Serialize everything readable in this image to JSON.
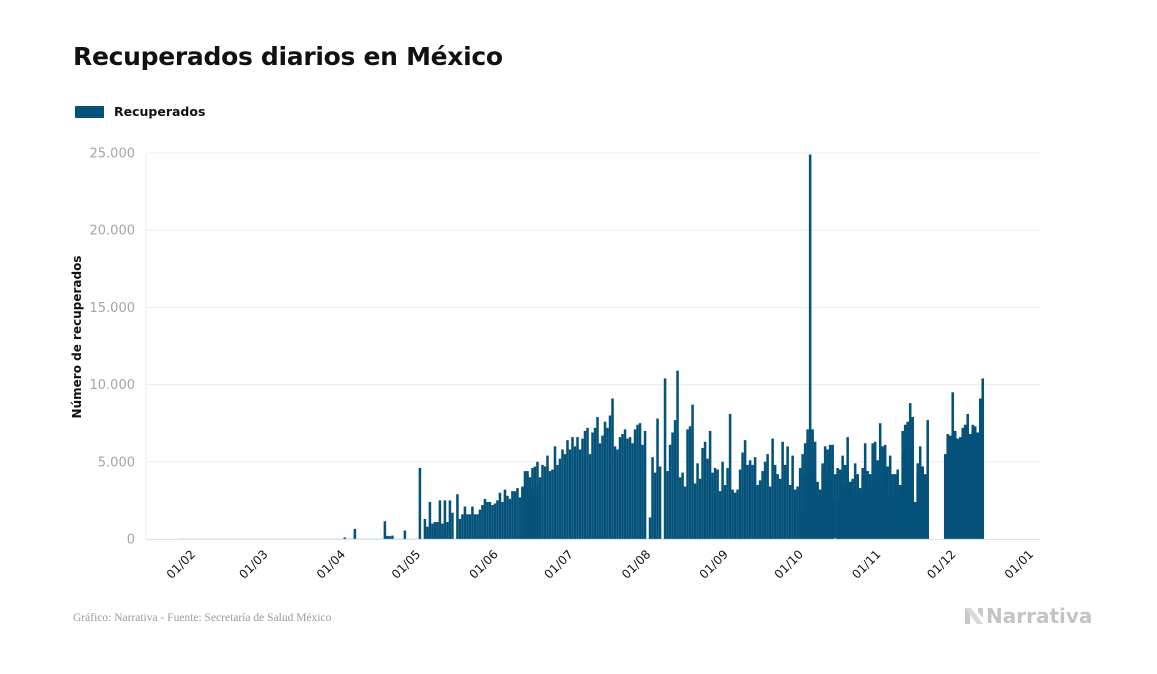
{
  "header": {
    "title": "Recuperados diarios en México"
  },
  "legend": {
    "items": [
      {
        "label": "Recuperados",
        "color": "#04527a"
      }
    ]
  },
  "footer": {
    "source": "Gráfico: Narrativa - Fuente: Secretaría de Salud México",
    "brand": "Narrativa",
    "brand_icon": "narrativa-logo-icon"
  },
  "chart_data": {
    "type": "bar",
    "title": "Recuperados diarios en México",
    "xlabel": "",
    "ylabel": "Número de recuperados",
    "ylim": [
      0,
      25000
    ],
    "yticks": [
      0,
      5000,
      10000,
      15000,
      20000,
      25000
    ],
    "ytick_labels": [
      "0",
      "5.000",
      "10.000",
      "15.000",
      "20.000",
      "25.000"
    ],
    "xlim": [
      "2020-01-10",
      "2020-12-31"
    ],
    "xticks": [
      "2020-02-01",
      "2020-03-01",
      "2020-04-01",
      "2020-05-01",
      "2020-06-01",
      "2020-07-01",
      "2020-08-01",
      "2020-09-01",
      "2020-10-01",
      "2020-11-01",
      "2020-12-01",
      "2021-01-01"
    ],
    "xtick_labels": [
      "01/02",
      "01/03",
      "01/04",
      "01/05",
      "01/06",
      "01/07",
      "01/08",
      "01/09",
      "01/10",
      "01/11",
      "01/12",
      "01/01"
    ],
    "grid": true,
    "legend_position": "top-left",
    "color": "#04527a",
    "series": [
      {
        "name": "Recuperados",
        "segments": [
          {
            "start": "2020-01-25",
            "values": [
              10,
              10,
              10,
              10,
              10,
              10,
              10,
              10,
              10,
              10,
              10,
              10,
              10,
              10,
              10,
              10,
              10,
              10,
              10,
              10,
              10,
              10,
              10,
              10,
              10,
              10,
              10,
              10,
              10,
              10,
              10,
              10,
              10,
              10,
              10,
              10,
              10,
              10,
              10,
              10,
              10,
              10,
              10,
              10,
              10,
              10,
              10,
              10,
              10,
              10,
              10,
              10,
              10,
              10,
              10,
              10,
              10,
              10,
              10,
              10,
              10,
              10,
              10,
              10,
              10,
              10
            ]
          },
          {
            "start": "2020-03-31",
            "values": [
              100,
              0,
              0,
              0,
              650,
              0,
              0,
              0,
              0,
              0,
              0,
              0,
              0,
              0,
              0,
              0,
              1150,
              200,
              180,
              220,
              0,
              0,
              0,
              0,
              550,
              0,
              0,
              0,
              0,
              0
            ]
          },
          {
            "start": "2020-04-30",
            "values": [
              4600,
              0,
              1300,
              800,
              2400,
              1000,
              1100,
              1100,
              2500,
              1000,
              2500,
              1100,
              2500,
              1700,
              0,
              2900,
              1300,
              1600,
              2100,
              1600,
              1600,
              2100,
              1600,
              1600,
              1900,
              2200,
              2600,
              2400,
              2400,
              2200,
              2300,
              2500,
              3000,
              2400,
              3200,
              2800,
              2600,
              3100,
              3100,
              3300,
              2700,
              3400,
              3400,
              4200,
              3300,
              3400,
              3000,
              3500
            ]
          },
          {
            "start": "2020-06-10",
            "values": [
              3300,
              4400,
              4400,
              4000,
              4600,
              4700,
              5000,
              4000,
              4800,
              4700,
              5400,
              4400,
              4500,
              6000,
              4800,
              5200,
              5800,
              5500,
              6400,
              5800,
              6600,
              6000,
              6600,
              5800,
              6500,
              7000,
              7200,
              5500,
              6900,
              7200
            ]
          },
          {
            "start": "2020-07-10",
            "values": [
              7900,
              6200,
              6700,
              7600,
              7200,
              8000,
              9100,
              6000,
              5800,
              6600,
              6800,
              7100,
              6500,
              6600,
              6200,
              7100,
              7400,
              7500,
              6100,
              7000
            ]
          },
          {
            "start": "2020-07-30",
            "values": [
              0,
              1400,
              5300,
              4300,
              7800,
              4700,
              0,
              10400,
              4400,
              6100,
              6900,
              7700,
              10900,
              4000,
              4300,
              3400,
              7100,
              7300,
              8700,
              3600,
              4900,
              3900,
              5900,
              6300,
              5200,
              7000,
              4300,
              4600,
              4500,
              3100,
              5000,
              3500,
              4600,
              8100,
              3200,
              3000,
              3200,
              4500,
              5600,
              6400,
              4800,
              5100,
              4800,
              5300,
              3500,
              3800,
              4400,
              5000,
              5500,
              3400,
              6500,
              4800,
              4200,
              3900,
              6300,
              4800,
              6000,
              3500,
              5400,
              3200,
              3400,
              4600,
              5500,
              6200,
              6400,
              4200,
              5800,
              3700,
              3700,
              3200,
              4900,
              6000,
              5800,
              4300,
              6100,
              4200,
              2700,
              4200,
              3400,
              3600,
              4400,
              3700,
              2700,
              4900,
              4000,
              2700,
              4600,
              6200,
              3500,
              3100,
              3500,
              3700,
              4100,
              3400,
              5600,
              4700,
              4700,
              2700,
              2800,
              2300,
              3000,
              2900,
              5600,
              4500,
              4500,
              5800,
              3900,
              2400,
              4200,
              6000,
              4600,
              3700,
              3100
            ]
          },
          {
            "start": "2020-09-29",
            "values": [
              1700,
              4200,
              4200,
              7100,
              24900,
              7100,
              6300,
              2800,
              2700,
              4600,
              3600,
              4700,
              6100,
              2600,
              0,
              4600,
              4500,
              5400,
              4800,
              6600,
              3700,
              3900,
              3100,
              4200,
              3300,
              4100,
              4700,
              4400,
              4200,
              6200,
              6300,
              5100,
              7500,
              6000,
              6100,
              2700,
              5400,
              4200,
              4200,
              4500,
              3500,
              7000,
              7400,
              7600,
              8800,
              7900,
              1800,
              4900,
              4400,
              4700,
              4200,
              7700
            ]
          },
          {
            "start": "2020-11-26",
            "values": [
              5500,
              6800,
              6700,
              9500,
              7000,
              6500,
              6600,
              7200,
              7400,
              8100,
              6800,
              7400,
              7300,
              6900,
              9100,
              10400
            ]
          }
        ]
      }
    ]
  }
}
